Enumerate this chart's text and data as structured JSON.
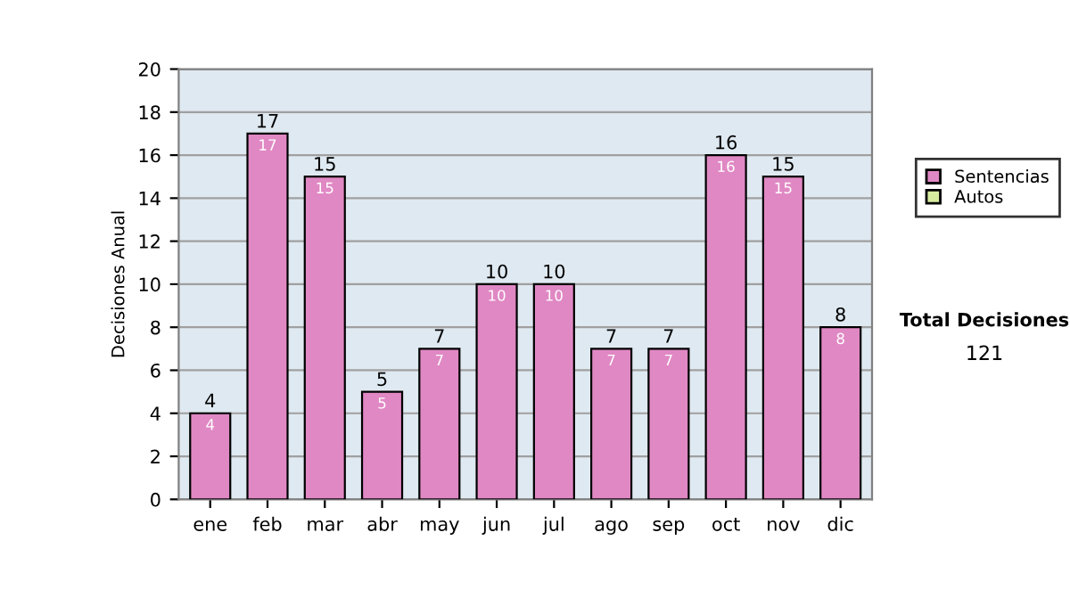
{
  "chart_data": {
    "type": "bar",
    "stacked": true,
    "ylabel": "Decisiones Anual",
    "categories": [
      "ene",
      "feb",
      "mar",
      "abr",
      "may",
      "jun",
      "jul",
      "ago",
      "sep",
      "oct",
      "nov",
      "dic"
    ],
    "series": [
      {
        "name": "Sentencias",
        "color": "#e088c4",
        "values": [
          4,
          17,
          15,
          5,
          7,
          10,
          10,
          7,
          7,
          16,
          15,
          8
        ],
        "value_labels": [
          "4",
          "17",
          "15",
          "5",
          "7",
          "10",
          "10",
          "7",
          "7",
          "16",
          "15",
          "8"
        ]
      },
      {
        "name": "Autos",
        "color": "#d8eca0",
        "values": [
          0,
          0,
          0,
          0,
          0,
          0,
          0,
          0,
          0,
          0,
          0,
          0
        ]
      }
    ],
    "totals": [
      "4",
      "17",
      "15",
      "5",
      "7",
      "10",
      "10",
      "7",
      "7",
      "16",
      "15",
      "8"
    ],
    "ylim": [
      0,
      20
    ],
    "yticks": [
      0,
      2,
      4,
      6,
      8,
      10,
      12,
      14,
      16,
      18,
      20
    ],
    "grid": "y",
    "legend": "right",
    "annotations": [
      "Total Decisiones",
      "121"
    ]
  }
}
